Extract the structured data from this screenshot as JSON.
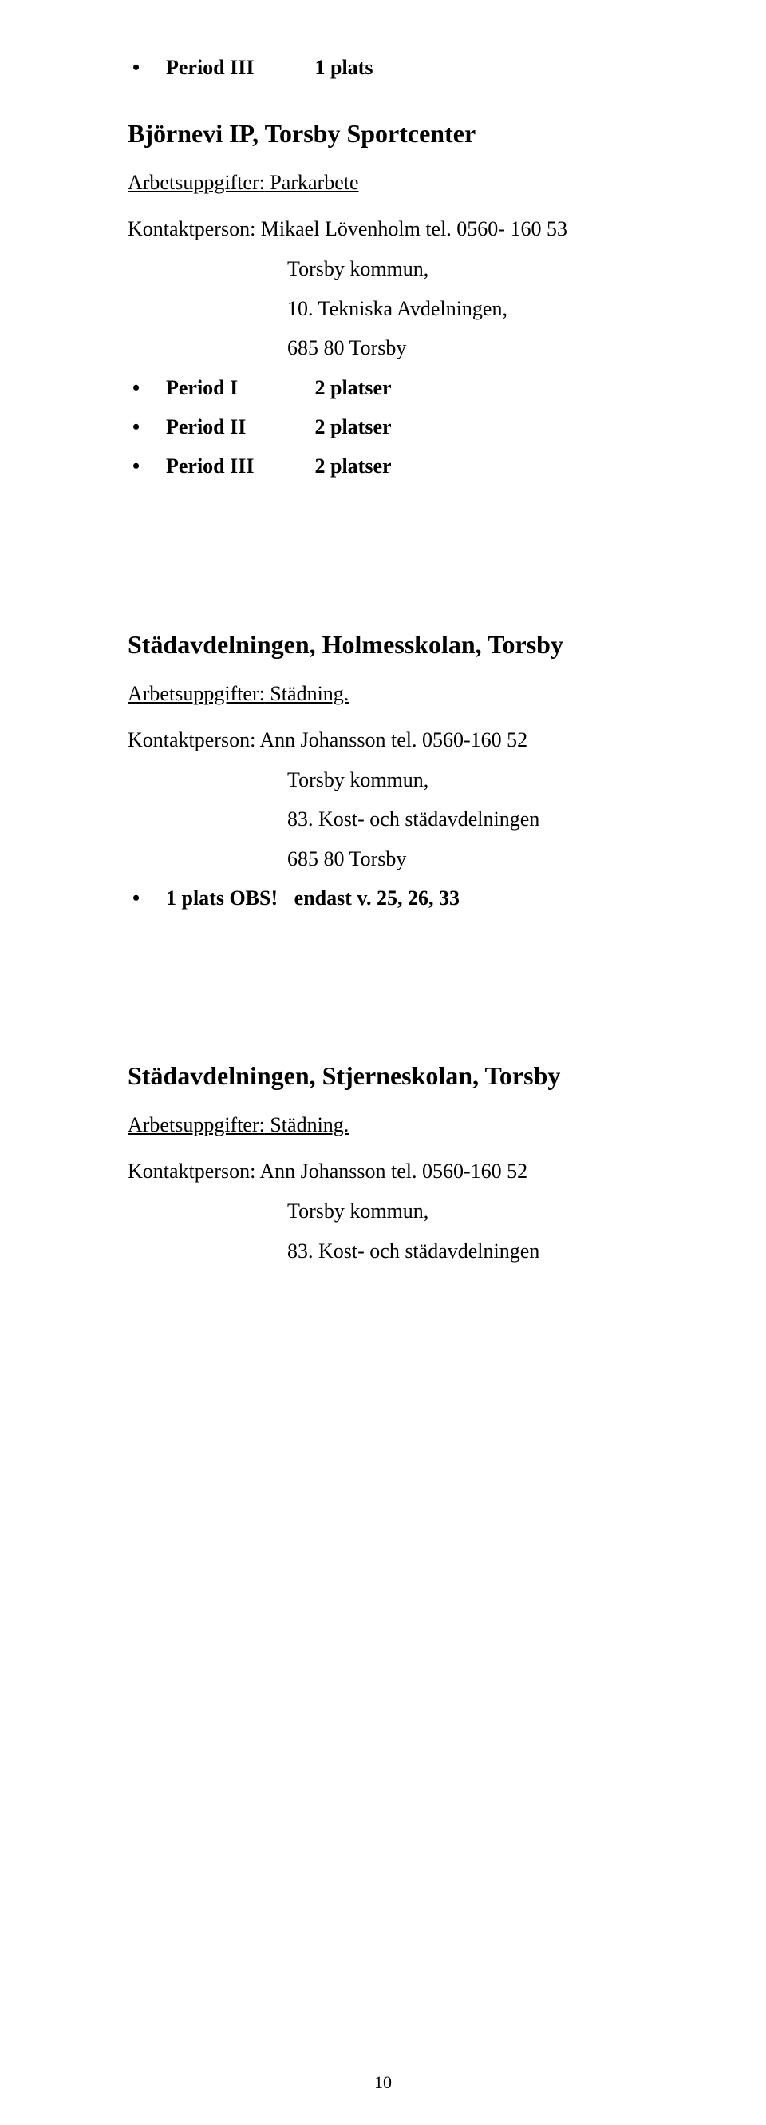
{
  "colors": {
    "background": "#ffffff",
    "text": "#000000"
  },
  "typography": {
    "family": "Palatino Linotype, Book Antiqua, Palatino, Georgia, serif",
    "body_size_pt": 20,
    "heading_size_pt": 24,
    "heading_weight": "bold"
  },
  "top_periods": [
    {
      "label": "Period III",
      "slots": "1 plats"
    }
  ],
  "sections": {
    "bjornevi": {
      "title": "Björnevi IP, Torsby Sportcenter",
      "task_label": "Arbetsuppgifter:",
      "task_value": "Parkarbete",
      "contact": "Kontaktperson: Mikael Lövenholm tel. 0560- 160 53",
      "address": [
        "Torsby kommun,",
        "10. Tekniska Avdelningen,",
        "685 80 Torsby"
      ],
      "periods": [
        {
          "label": "Period I",
          "slots": "2 platser"
        },
        {
          "label": "Period II",
          "slots": "2 platser"
        },
        {
          "label": "Period III",
          "slots": "2 platser"
        }
      ]
    },
    "holmesskolan": {
      "title": "Städavdelningen, Holmesskolan, Torsby",
      "task_label": "Arbetsuppgifter:",
      "task_value": "Städning.",
      "contact": "Kontaktperson: Ann Johansson tel. 0560-160 52",
      "address": [
        "Torsby kommun,",
        "83. Kost- och städavdelningen",
        "685 80 Torsby"
      ],
      "periods": [
        {
          "label": "1 plats OBS!",
          "slots": "endast v. 25, 26, 33"
        }
      ]
    },
    "stjerneskolan": {
      "title": "Städavdelningen, Stjerneskolan, Torsby",
      "task_label": "Arbetsuppgifter:",
      "task_value": "Städning.",
      "contact": "Kontaktperson: Ann Johansson tel. 0560-160 52",
      "address": [
        "Torsby kommun,",
        "83. Kost- och städavdelningen"
      ]
    }
  },
  "page_number": "10"
}
